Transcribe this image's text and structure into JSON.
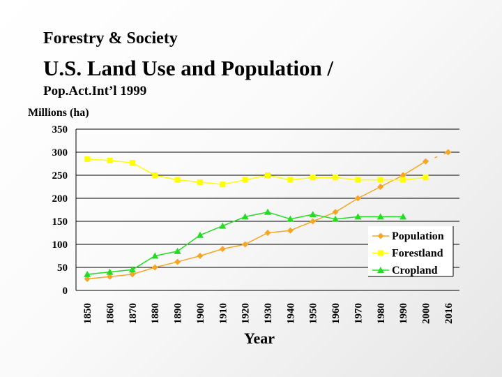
{
  "header": {
    "subtitle": "Forestry & Society",
    "title": "U.S. Land Use and Population /",
    "source": "Pop.Act.Int’l 1999"
  },
  "chart_data": {
    "type": "line",
    "ylabel": "Millions (ha)",
    "xlabel": "Year",
    "ylim": [
      0,
      350
    ],
    "yticks": [
      0,
      50,
      100,
      150,
      200,
      250,
      300,
      350
    ],
    "categories": [
      "1850",
      "1860",
      "1870",
      "1880",
      "1890",
      "1900",
      "1910",
      "1920",
      "1930",
      "1940",
      "1950",
      "1960",
      "1970",
      "1980",
      "1990",
      "2000",
      "2016"
    ],
    "grid": "horizontal",
    "legend_position": "bottom-right",
    "series": [
      {
        "name": "Population",
        "color": "#f5a623",
        "marker": "diamond",
        "values": [
          25,
          30,
          35,
          50,
          62,
          75,
          90,
          100,
          125,
          130,
          150,
          170,
          200,
          225,
          250,
          280,
          300
        ]
      },
      {
        "name": "Forestland",
        "color": "#ffff00",
        "marker": "square",
        "values": [
          285,
          282,
          277,
          250,
          240,
          235,
          230,
          240,
          250,
          240,
          245,
          245,
          240,
          240,
          240,
          245,
          null
        ]
      },
      {
        "name": "Cropland",
        "color": "#22dd22",
        "marker": "triangle",
        "values": [
          35,
          40,
          45,
          75,
          85,
          120,
          140,
          160,
          170,
          155,
          165,
          155,
          160,
          160,
          160,
          null,
          null
        ]
      }
    ]
  }
}
